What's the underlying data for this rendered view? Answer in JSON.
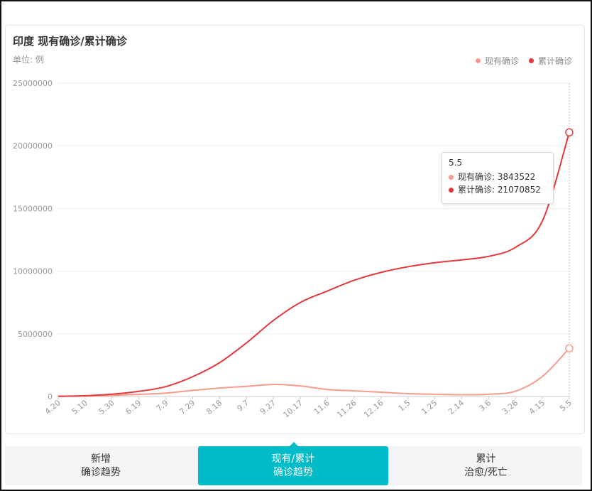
{
  "title": "印度 现有确诊/累计确诊",
  "unit": "单位: 例",
  "colors": {
    "current": "#f99a8c",
    "cumulative": "#e4393c",
    "accent": "#00bcc8"
  },
  "legend": [
    {
      "label": "现有确诊",
      "color": "#f99a8c"
    },
    {
      "label": "累计确诊",
      "color": "#e4393c"
    }
  ],
  "tooltip": {
    "date": "5.5",
    "rows": [
      {
        "text": "现有确诊: 3843522",
        "color": "#f99a8c"
      },
      {
        "text": "累计确诊: 21070852",
        "color": "#e4393c"
      }
    ]
  },
  "tabs": [
    {
      "line1": "新增",
      "line2": "确诊趋势",
      "active": false
    },
    {
      "line1": "现有/累计",
      "line2": "确诊趋势",
      "active": true
    },
    {
      "line1": "累计",
      "line2": "治愈/死亡",
      "active": false
    }
  ],
  "chart_data": {
    "type": "line",
    "ylim": [
      0,
      25000000
    ],
    "y_ticks": [
      0,
      5000000,
      10000000,
      15000000,
      20000000,
      25000000
    ],
    "x_ticks": [
      "4.20",
      "5.10",
      "5.30",
      "6.19",
      "7.9",
      "7.29",
      "8.18",
      "9.7",
      "9.27",
      "10.17",
      "11.6",
      "11.26",
      "12.16",
      "1.5",
      "1.25",
      "2.14",
      "3.6",
      "3.26",
      "4.15",
      "5.5"
    ],
    "x": [
      "4.20",
      "5.10",
      "5.30",
      "6.19",
      "7.9",
      "7.29",
      "8.18",
      "9.7",
      "9.27",
      "10.17",
      "11.6",
      "11.26",
      "12.16",
      "1.5",
      "1.25",
      "2.14",
      "3.6",
      "3.26",
      "4.15",
      "5.5"
    ],
    "series": [
      {
        "name": "现有确诊",
        "values": [
          14000,
          38000,
          92000,
          170000,
          270000,
          490000,
          670000,
          810000,
          960000,
          840000,
          560000,
          450000,
          340000,
          230000,
          180000,
          140000,
          180000,
          420000,
          1600000,
          3843522
        ]
      },
      {
        "name": "累计确诊",
        "values": [
          18000,
          62000,
          182000,
          410000,
          790000,
          1580000,
          2700000,
          4280000,
          6070000,
          7500000,
          8410000,
          9270000,
          9900000,
          10350000,
          10670000,
          10900000,
          11180000,
          11900000,
          14000000,
          21070852
        ]
      }
    ],
    "highlight_index": 19,
    "grid": true,
    "legend_position": "top-right"
  }
}
